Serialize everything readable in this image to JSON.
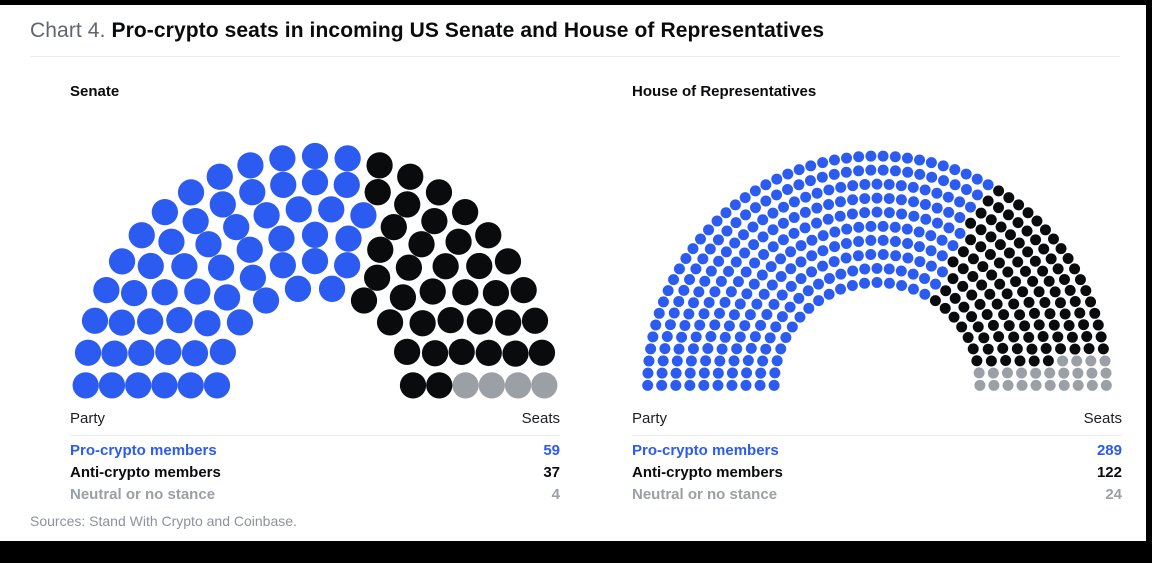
{
  "page": {
    "title_prefix": "Chart 4.",
    "title": "Pro-crypto seats in incoming US Senate and House of Representatives",
    "source": "Sources: Stand With Crypto and Coinbase."
  },
  "colors": {
    "pro_crypto": "#2b5bf0",
    "anti_crypto": "#0a0b0d",
    "neutral": "#9aa0a5",
    "background": "#ffffff",
    "frame": "#000000"
  },
  "chart_data": [
    {
      "type": "parliament",
      "title": "Senate",
      "total_seats": 100,
      "rows": 6,
      "inner_radius": 100,
      "outer_radius": 234,
      "dot_radius": 13.4,
      "legend_position": "table-below",
      "table": {
        "party_label": "Party",
        "seats_label": "Seats"
      },
      "series": [
        {
          "name": "Pro-crypto members",
          "value": 59,
          "color": "#2b5bf0"
        },
        {
          "name": "Anti-crypto members",
          "value": 37,
          "color": "#0a0b0d"
        },
        {
          "name": "Neutral or no stance",
          "value": 4,
          "color": "#9aa0a5"
        }
      ]
    },
    {
      "type": "parliament",
      "title": "House of Representatives",
      "total_seats": 435,
      "rows": 10,
      "inner_radius": 105,
      "outer_radius": 234,
      "dot_radius": 5.6,
      "legend_position": "table-below",
      "table": {
        "party_label": "Party",
        "seats_label": "Seats"
      },
      "series": [
        {
          "name": "Pro-crypto members",
          "value": 289,
          "color": "#2b5bf0"
        },
        {
          "name": "Anti-crypto members",
          "value": 122,
          "color": "#0a0b0d"
        },
        {
          "name": "Neutral or no stance",
          "value": 24,
          "color": "#9aa0a5"
        }
      ]
    }
  ]
}
